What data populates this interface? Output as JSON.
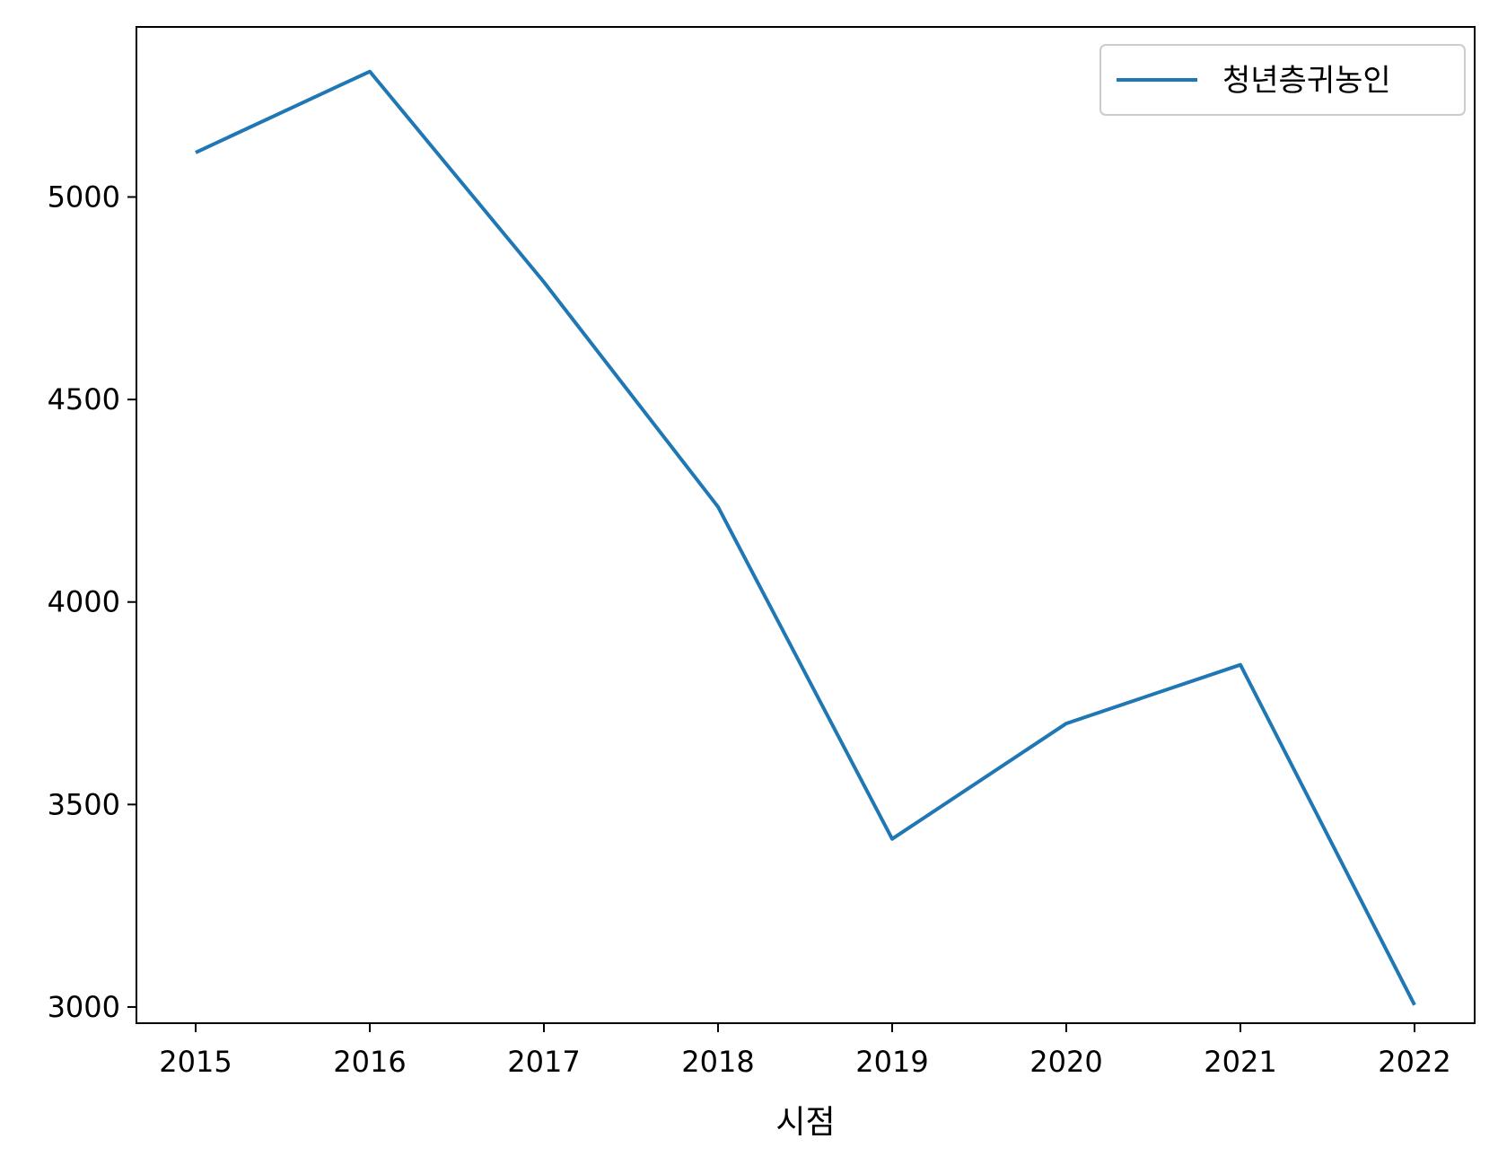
{
  "chart_data": {
    "type": "line",
    "x": [
      "2015",
      "2016",
      "2017",
      "2018",
      "2019",
      "2020",
      "2021",
      "2022"
    ],
    "series": [
      {
        "name": "청년층귀농인",
        "values": [
          5110,
          5310,
          4790,
          4235,
          3415,
          3700,
          3845,
          3005
        ],
        "color": "#1f77b4"
      }
    ],
    "xlabel": "시점",
    "ylabel": "",
    "yticks": [
      3000,
      3500,
      4000,
      4500,
      5000
    ],
    "ylim": [
      2960,
      5420
    ],
    "grid": false,
    "legend": "top-right"
  }
}
